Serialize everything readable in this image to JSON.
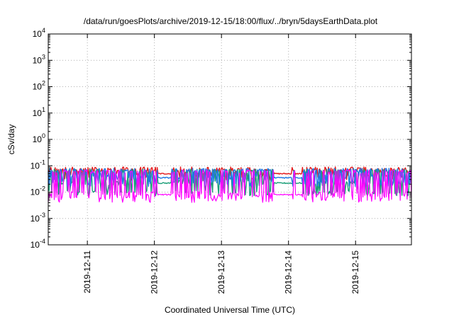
{
  "chart_data": {
    "type": "line",
    "title": "/data/run/goesPlots/archive/2019-12-15/18:00/flux/../bryn/5daysEarthData.plot",
    "xlabel": "Coordinated Universal Time (UTC)",
    "ylabel": "cSv/day",
    "yscale": "log",
    "ylim": [
      0.0001,
      10000
    ],
    "xlim": [
      "2019-12-10T10:00",
      "2019-12-15T20:00"
    ],
    "x_ticks": [
      "2019-12-11",
      "2019-12-12",
      "2019-12-13",
      "2019-12-14",
      "2019-12-15"
    ],
    "y_ticks": [
      {
        "base": "10",
        "exp": "-4"
      },
      {
        "base": "10",
        "exp": "-3"
      },
      {
        "base": "10",
        "exp": "-2"
      },
      {
        "base": "10",
        "exp": "-1"
      },
      {
        "base": "10",
        "exp": "0"
      },
      {
        "base": "10",
        "exp": "1"
      },
      {
        "base": "10",
        "exp": "2"
      },
      {
        "base": "10",
        "exp": "3"
      },
      {
        "base": "10",
        "exp": "4"
      }
    ],
    "grid": true,
    "legend": "none",
    "series": [
      {
        "color": "#e41a1c",
        "baseline": 0.05,
        "peak": 0.09,
        "low": 0.035
      },
      {
        "color": "#1a9e77",
        "baseline": 0.022,
        "peak": 0.075,
        "low": 0.009
      },
      {
        "color": "#1f78e4",
        "baseline": 0.035,
        "peak": 0.08,
        "low": 0.02
      },
      {
        "color": "#ff00ff",
        "baseline": 0.008,
        "peak": 0.07,
        "low": 0.005
      }
    ]
  }
}
